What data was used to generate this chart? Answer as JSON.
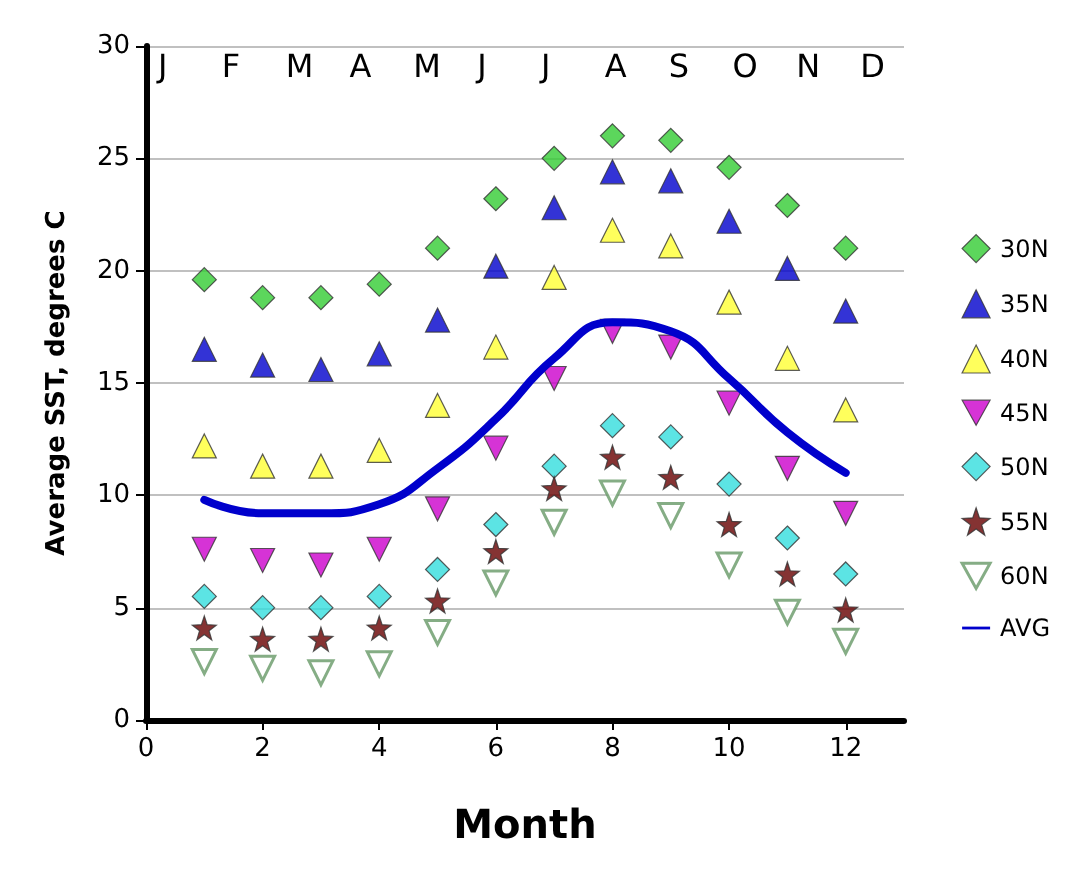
{
  "chart_data": {
    "type": "scatter",
    "xlabel": "Month",
    "ylabel": "Average SST, degrees C",
    "annotations": [
      "J",
      "F",
      "M",
      "A",
      "M",
      "J",
      "J",
      "A",
      "S",
      "O",
      "N",
      "D"
    ],
    "x": [
      1,
      2,
      3,
      4,
      5,
      6,
      7,
      8,
      9,
      10,
      11,
      12
    ],
    "series": [
      {
        "name": "30N",
        "color": "#33cc33",
        "marker": "diamond",
        "values": [
          19.6,
          18.8,
          18.8,
          19.4,
          21,
          23.2,
          25,
          26,
          25.8,
          24.6,
          22.9,
          21
        ]
      },
      {
        "name": "35N",
        "color": "#0000cc",
        "marker": "triangle",
        "values": [
          16.5,
          15.8,
          15.6,
          16.3,
          17.8,
          20.2,
          22.8,
          24.4,
          24,
          22.2,
          20.1,
          18.2
        ]
      },
      {
        "name": "40N",
        "color": "#ffff33",
        "marker": "triangle",
        "values": [
          12.2,
          11.3,
          11.3,
          12,
          14,
          16.6,
          19.7,
          21.8,
          21.1,
          18.6,
          16.1,
          13.8
        ]
      },
      {
        "name": "45N",
        "color": "#cc00cc",
        "marker": "triangle-down",
        "values": [
          7.6,
          7.1,
          6.9,
          7.6,
          9.4,
          12.1,
          15.2,
          17.3,
          16.6,
          14.1,
          11.2,
          9.2
        ]
      },
      {
        "name": "50N",
        "color": "#33dddd",
        "marker": "diamond",
        "values": [
          5.5,
          5,
          5,
          5.5,
          6.7,
          8.7,
          11.3,
          13.1,
          12.6,
          10.5,
          8.1,
          6.5
        ]
      },
      {
        "name": "55N",
        "color": "#660000",
        "marker": "star",
        "values": [
          4.1,
          3.6,
          3.6,
          4.1,
          5.3,
          7.5,
          10.3,
          11.7,
          10.8,
          8.7,
          6.5,
          4.9
        ]
      },
      {
        "name": "60N",
        "color": "#669966",
        "marker": "triangle-down-open",
        "values": [
          2.6,
          2.3,
          2.1,
          2.5,
          3.9,
          6.1,
          8.8,
          10.1,
          9.1,
          6.9,
          4.8,
          3.5
        ]
      },
      {
        "name": "AVG",
        "type": "line",
        "color": "#0000cc",
        "marker": "none",
        "values": [
          9.8,
          9.2,
          9.2,
          9.6,
          11.2,
          13.4,
          16.1,
          17.7,
          17.3,
          15.2,
          12.8,
          11.0
        ]
      }
    ],
    "xlim": [
      0,
      13
    ],
    "xticks": [
      0,
      2,
      4,
      6,
      8,
      10,
      12
    ],
    "ylim": [
      0,
      30
    ],
    "yticks": [
      0,
      5,
      10,
      15,
      20,
      25,
      30
    ],
    "grid": "y",
    "legend": "right"
  }
}
